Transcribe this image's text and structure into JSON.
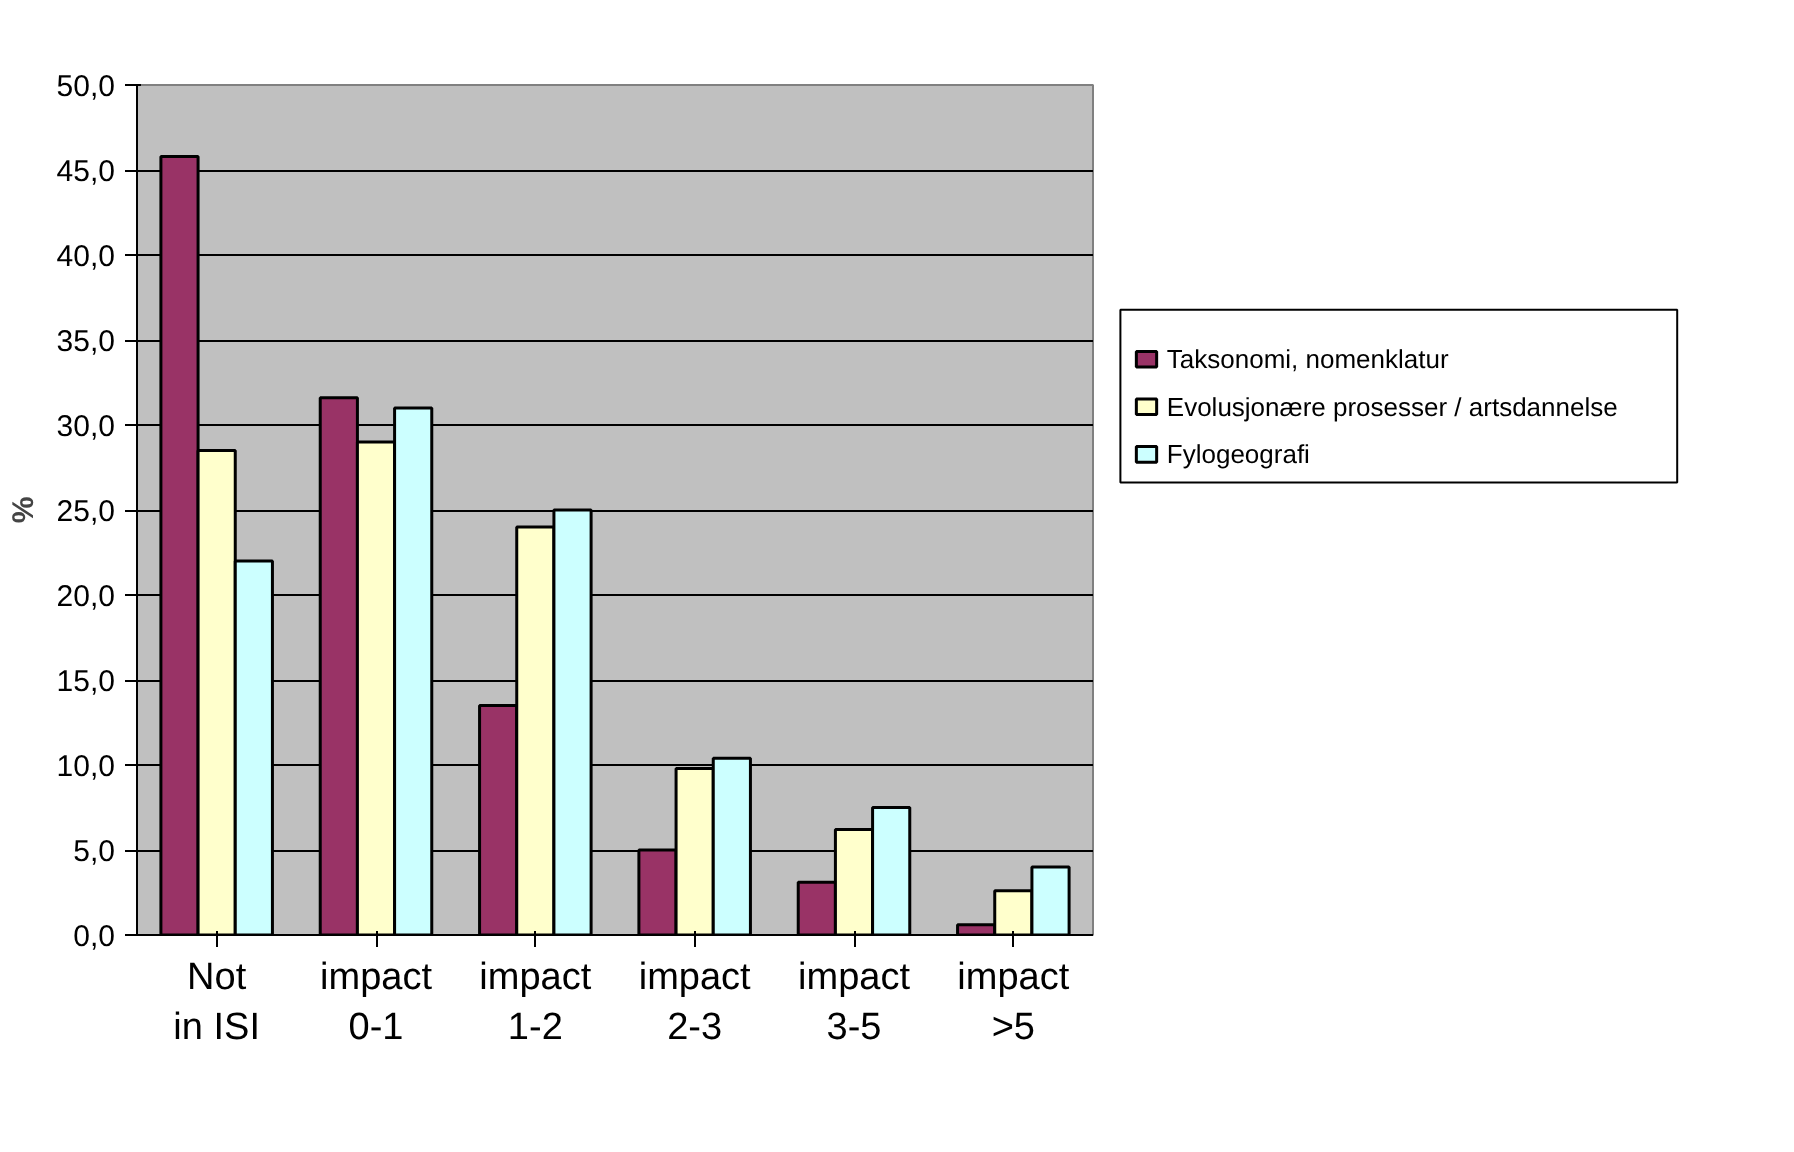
{
  "chart_data": {
    "type": "bar",
    "ylabel": "%",
    "categories": [
      "Not in ISI",
      "impact 0-1",
      "impact 1-2",
      "impact 2-3",
      "impact 3-5",
      "impact >5"
    ],
    "series": [
      {
        "name": "Taksonomi, nomenklatur",
        "color": "#993366",
        "values": [
          45.8,
          31.6,
          13.5,
          5.0,
          3.1,
          0.6
        ]
      },
      {
        "name": "Evolusjonære prosesser / artsdannelse",
        "color": "#ffffcc",
        "values": [
          28.5,
          29.0,
          24.0,
          9.8,
          6.2,
          2.6
        ]
      },
      {
        "name": "Fylogeografi",
        "color": "#ccffff",
        "values": [
          22.0,
          31.0,
          25.0,
          10.4,
          7.5,
          4.0
        ]
      }
    ],
    "ylim": [
      0,
      50
    ],
    "yticks": [
      {
        "value": 0,
        "label": "0,0"
      },
      {
        "value": 5,
        "label": "5,0"
      },
      {
        "value": 10,
        "label": "10,0"
      },
      {
        "value": 15,
        "label": "15,0"
      },
      {
        "value": 20,
        "label": "20,0"
      },
      {
        "value": 25,
        "label": "25,0"
      },
      {
        "value": 30,
        "label": "30,0"
      },
      {
        "value": 35,
        "label": "35,0"
      },
      {
        "value": 40,
        "label": "40,0"
      },
      {
        "value": 45,
        "label": "45,0"
      },
      {
        "value": 50,
        "label": "50,0"
      }
    ],
    "grid": "y",
    "legend": "right"
  }
}
